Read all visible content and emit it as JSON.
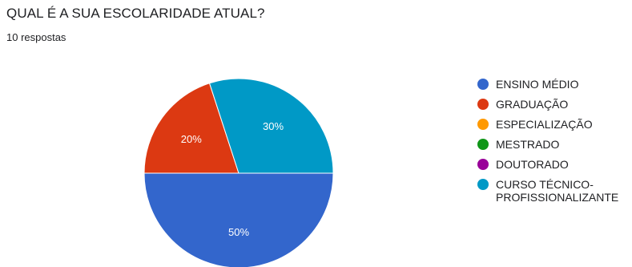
{
  "header": {
    "title": "QUAL É A SUA ESCOLARIDADE ATUAL?",
    "subtitle": "10 respostas"
  },
  "chart_data": {
    "type": "pie",
    "categories": [
      "ENSINO MÉDIO",
      "GRADUAÇÃO",
      "ESPECIALIZAÇÃO",
      "MESTRADO",
      "DOUTORADO",
      "CURSO TÉCNICO-PROFISSIONALIZANTE"
    ],
    "legend_lines": [
      [
        "ENSINO MÉDIO"
      ],
      [
        "GRADUAÇÃO"
      ],
      [
        "ESPECIALIZAÇÃO"
      ],
      [
        "MESTRADO"
      ],
      [
        "DOUTORADO"
      ],
      [
        "CURSO TÉCNICO-",
        "PROFISSIONALIZANTE"
      ]
    ],
    "values": [
      50,
      20,
      0,
      0,
      0,
      30
    ],
    "value_labels": [
      "50%",
      "20%",
      "",
      "",
      "",
      "30%"
    ],
    "colors": [
      "#3366cc",
      "#dc3912",
      "#ff9900",
      "#109618",
      "#990099",
      "#0099c6"
    ],
    "legend_position": "right",
    "start_angle": "east",
    "direction": "clockwise"
  }
}
